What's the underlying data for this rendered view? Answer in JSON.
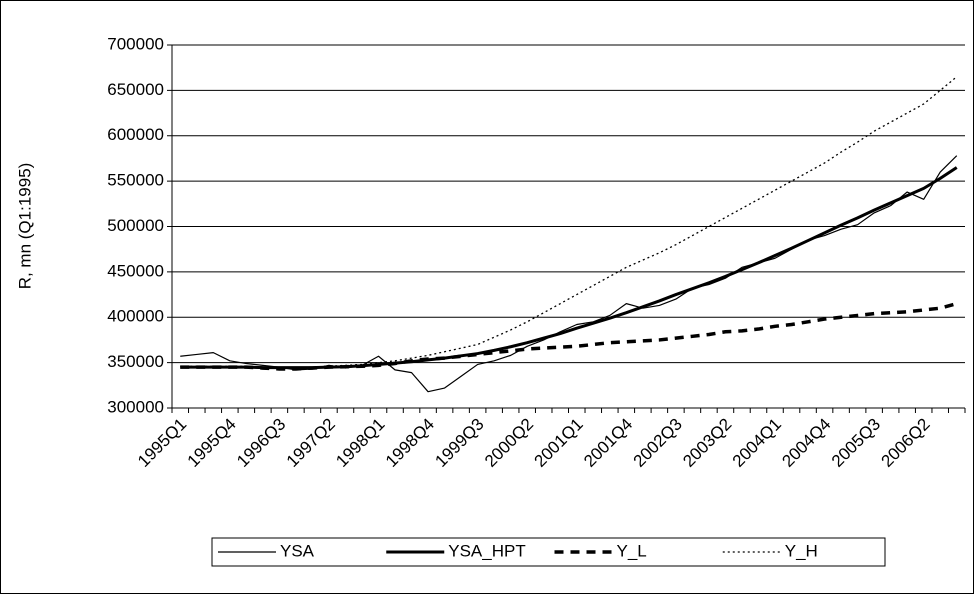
{
  "chart_data": {
    "type": "line",
    "y_label": "R, mn (Q1:1995)",
    "categories": [
      "1995Q1",
      null,
      null,
      "1995Q4",
      null,
      null,
      "1996Q3",
      null,
      null,
      "1997Q2",
      null,
      null,
      "1998Q1",
      null,
      null,
      "1998Q4",
      null,
      null,
      "1999Q3",
      null,
      null,
      "2000Q2",
      null,
      null,
      "2001Q1",
      null,
      null,
      "2001Q4",
      null,
      null,
      "2002Q3",
      null,
      null,
      "2003Q2",
      null,
      null,
      "2004Q1",
      null,
      null,
      "2004Q4",
      null,
      null,
      "2005Q3",
      null,
      null,
      "2006Q2",
      null,
      null
    ],
    "ylim": [
      300000,
      700000
    ],
    "yticks": [
      300000,
      350000,
      400000,
      450000,
      500000,
      550000,
      600000,
      650000,
      700000
    ],
    "grid": true,
    "legend": "bottom",
    "series": [
      {
        "name": "YSA",
        "color": "#000000",
        "style": "thin",
        "values": [
          357000,
          359000,
          361000,
          352000,
          349000,
          347000,
          345000,
          342000,
          343000,
          347000,
          344000,
          347000,
          357000,
          342000,
          339000,
          318000,
          322000,
          335000,
          348000,
          352000,
          358000,
          368000,
          375000,
          384000,
          392000,
          395000,
          402000,
          415000,
          410000,
          413000,
          420000,
          432000,
          436000,
          443000,
          455000,
          460000,
          465000,
          475000,
          485000,
          490000,
          497000,
          502000,
          515000,
          523000,
          538000,
          530000,
          560000,
          578000
        ]
      },
      {
        "name": "YSA_HPT",
        "color": "#000000",
        "style": "thick",
        "values": [
          345000,
          345000,
          345000,
          345000,
          345000,
          344500,
          344500,
          344500,
          344500,
          345000,
          345500,
          346500,
          348000,
          349500,
          351000,
          353000,
          355000,
          357500,
          360000,
          363500,
          367500,
          372000,
          377000,
          382000,
          388000,
          393500,
          399000,
          405000,
          411500,
          418000,
          425000,
          431500,
          438000,
          445000,
          452500,
          460000,
          468000,
          476000,
          484500,
          493000,
          501500,
          509500,
          518000,
          526000,
          534000,
          542000,
          553000,
          565000
        ]
      },
      {
        "name": "Y_L",
        "color": "#000000",
        "style": "dashed",
        "values": [
          345000,
          345000,
          345000,
          345000,
          345000,
          344000,
          343000,
          343000,
          344000,
          345000,
          345500,
          346000,
          347000,
          349000,
          352000,
          354000,
          355000,
          357000,
          359000,
          361000,
          363000,
          365000,
          366000,
          367000,
          368000,
          370000,
          372000,
          373000,
          374000,
          375000,
          377000,
          379000,
          381000,
          384000,
          385000,
          387000,
          390000,
          392000,
          395000,
          398000,
          400000,
          402000,
          404000,
          405000,
          406000,
          408000,
          410000,
          415000
        ]
      },
      {
        "name": "Y_H",
        "color": "#000000",
        "style": "dotted",
        "values": [
          346000,
          346000,
          346000,
          346000,
          346000,
          345000,
          344000,
          344000,
          345000,
          346000,
          347000,
          348000,
          350000,
          352000,
          355000,
          358000,
          362000,
          366000,
          370000,
          378000,
          386000,
          395000,
          405000,
          415000,
          425000,
          435000,
          445000,
          455000,
          463000,
          471000,
          480000,
          490000,
          500000,
          510000,
          520000,
          530000,
          540000,
          550000,
          560000,
          570000,
          582000,
          593000,
          605000,
          615000,
          625000,
          635000,
          650000,
          665000
        ]
      }
    ]
  }
}
